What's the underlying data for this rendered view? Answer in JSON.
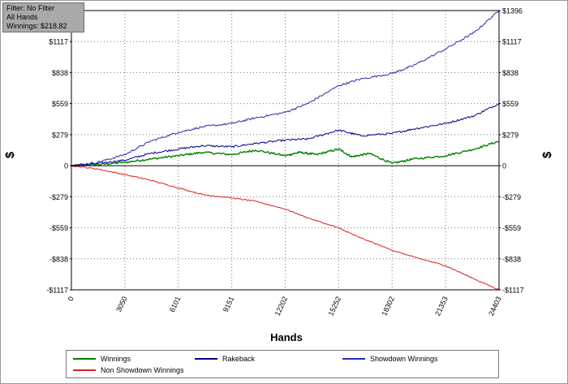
{
  "info": {
    "line1": "Filter: No Filter",
    "line2": "All Hands",
    "line3": "Winnings: $218.82"
  },
  "chart_data": {
    "type": "line",
    "xlabel": "Hands",
    "ylabel_left": "$",
    "ylabel_right": "$",
    "xlim": [
      0,
      24403
    ],
    "ylim": [
      -1117,
      1396
    ],
    "x_ticks": [
      0,
      3050,
      6101,
      9151,
      12202,
      15252,
      18302,
      21353,
      24403
    ],
    "y_ticks": [
      {
        "value": 1396,
        "label": "$1396"
      },
      {
        "value": 1117,
        "label": "$1117"
      },
      {
        "value": 838,
        "label": "$838"
      },
      {
        "value": 559,
        "label": "$559"
      },
      {
        "value": 279,
        "label": "$279"
      },
      {
        "value": 0,
        "label": "0"
      },
      {
        "value": -279,
        "label": "-$279"
      },
      {
        "value": -559,
        "label": "-$559"
      },
      {
        "value": -838,
        "label": "-$838"
      },
      {
        "value": -1117,
        "label": "-$1117"
      }
    ],
    "grid": true,
    "legend_position": "bottom",
    "series": [
      {
        "name": "Winnings",
        "color": "#008000",
        "x": [
          0,
          1500,
          3050,
          4500,
          6101,
          7500,
          9151,
          10500,
          12202,
          13000,
          14000,
          15252,
          16000,
          17000,
          18302,
          19500,
          21353,
          23000,
          24403
        ],
        "y": [
          0,
          10,
          30,
          60,
          90,
          120,
          100,
          140,
          90,
          120,
          100,
          150,
          80,
          110,
          20,
          60,
          90,
          150,
          220
        ]
      },
      {
        "name": "Rakeback",
        "color": "#00008b",
        "x": [
          0,
          1500,
          3050,
          4500,
          6101,
          7500,
          9151,
          10500,
          12202,
          13500,
          15252,
          16500,
          18302,
          19500,
          21353,
          23000,
          24403
        ],
        "y": [
          0,
          20,
          50,
          110,
          150,
          180,
          170,
          200,
          230,
          240,
          320,
          270,
          290,
          330,
          380,
          450,
          560
        ]
      },
      {
        "name": "Showdown Winnings",
        "color": "#2a2ab0",
        "x": [
          0,
          1500,
          3050,
          4500,
          6101,
          7500,
          9151,
          10500,
          12202,
          13500,
          15252,
          16500,
          18302,
          19500,
          21353,
          23000,
          24403
        ],
        "y": [
          0,
          30,
          100,
          220,
          300,
          350,
          380,
          430,
          480,
          560,
          720,
          780,
          830,
          900,
          1050,
          1200,
          1396
        ]
      },
      {
        "name": "Non Showdown Winnings",
        "color": "#dd2222",
        "x": [
          0,
          1500,
          3050,
          4500,
          6101,
          7500,
          9151,
          10500,
          12202,
          13500,
          15252,
          16500,
          18302,
          19500,
          21353,
          23000,
          24403
        ],
        "y": [
          0,
          -30,
          -80,
          -130,
          -200,
          -260,
          -290,
          -320,
          -390,
          -470,
          -560,
          -650,
          -760,
          -820,
          -900,
          -1020,
          -1117
        ]
      }
    ]
  }
}
